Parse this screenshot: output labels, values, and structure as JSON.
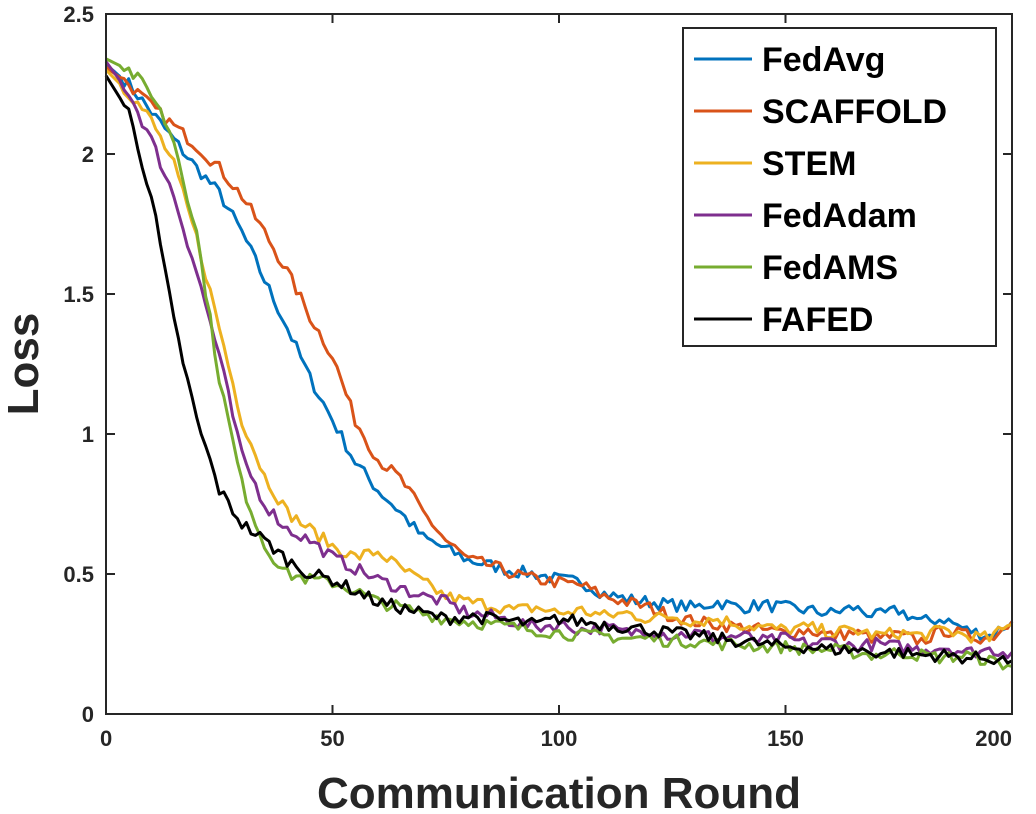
{
  "chart_data": {
    "type": "line",
    "title": "",
    "xlabel": "Communication Round",
    "ylabel": "Loss",
    "xlim": [
      0,
      200
    ],
    "ylim": [
      0,
      2.5
    ],
    "xticks": [
      0,
      50,
      100,
      150,
      200
    ],
    "yticks": [
      0,
      0.5,
      1,
      1.5,
      2,
      2.5
    ],
    "xtick_labels": [
      "0",
      "50",
      "100",
      "150",
      "200"
    ],
    "ytick_labels": [
      "0",
      "0.5",
      "1",
      "1.5",
      "2",
      "2.5"
    ],
    "grid": false,
    "legend_position": "top-right",
    "x": [
      0,
      5,
      10,
      15,
      20,
      25,
      30,
      35,
      40,
      45,
      50,
      55,
      60,
      65,
      70,
      75,
      80,
      85,
      90,
      95,
      100,
      105,
      110,
      115,
      120,
      125,
      130,
      135,
      140,
      145,
      150,
      155,
      160,
      165,
      170,
      175,
      180,
      185,
      190,
      195,
      200
    ],
    "series": [
      {
        "name": "FedAvg",
        "color": "#0072BD",
        "values": [
          2.32,
          2.25,
          2.15,
          2.05,
          1.95,
          1.86,
          1.72,
          1.55,
          1.38,
          1.2,
          1.05,
          0.9,
          0.8,
          0.72,
          0.63,
          0.59,
          0.55,
          0.53,
          0.51,
          0.5,
          0.48,
          0.47,
          0.43,
          0.41,
          0.4,
          0.39,
          0.38,
          0.4,
          0.38,
          0.39,
          0.38,
          0.37,
          0.36,
          0.38,
          0.35,
          0.37,
          0.33,
          0.34,
          0.3,
          0.28,
          0.33
        ]
      },
      {
        "name": "SCAFFOLD",
        "color": "#D95319",
        "values": [
          2.31,
          2.25,
          2.17,
          2.1,
          2.03,
          1.95,
          1.85,
          1.72,
          1.58,
          1.42,
          1.28,
          1.05,
          0.91,
          0.84,
          0.72,
          0.62,
          0.55,
          0.53,
          0.5,
          0.48,
          0.47,
          0.46,
          0.42,
          0.4,
          0.38,
          0.35,
          0.33,
          0.32,
          0.31,
          0.3,
          0.29,
          0.3,
          0.28,
          0.29,
          0.27,
          0.28,
          0.26,
          0.3,
          0.28,
          0.27,
          0.33
        ]
      },
      {
        "name": "STEM",
        "color": "#EDB120",
        "values": [
          2.3,
          2.22,
          2.12,
          1.96,
          1.7,
          1.38,
          1.05,
          0.85,
          0.72,
          0.66,
          0.6,
          0.56,
          0.58,
          0.52,
          0.47,
          0.42,
          0.4,
          0.39,
          0.37,
          0.38,
          0.36,
          0.37,
          0.35,
          0.36,
          0.34,
          0.35,
          0.33,
          0.34,
          0.32,
          0.31,
          0.3,
          0.31,
          0.29,
          0.3,
          0.28,
          0.29,
          0.28,
          0.3,
          0.28,
          0.27,
          0.32
        ]
      },
      {
        "name": "FedAdam",
        "color": "#7E2F8E",
        "values": [
          2.33,
          2.22,
          2.05,
          1.85,
          1.58,
          1.28,
          0.92,
          0.75,
          0.66,
          0.62,
          0.56,
          0.52,
          0.48,
          0.45,
          0.42,
          0.4,
          0.36,
          0.35,
          0.33,
          0.31,
          0.32,
          0.3,
          0.31,
          0.29,
          0.3,
          0.28,
          0.29,
          0.27,
          0.28,
          0.26,
          0.27,
          0.25,
          0.26,
          0.24,
          0.25,
          0.24,
          0.23,
          0.24,
          0.22,
          0.23,
          0.22
        ]
      },
      {
        "name": "FedAMS",
        "color": "#77AC30",
        "values": [
          2.34,
          2.3,
          2.22,
          2.05,
          1.72,
          1.2,
          0.82,
          0.6,
          0.5,
          0.48,
          0.47,
          0.44,
          0.4,
          0.38,
          0.36,
          0.34,
          0.33,
          0.32,
          0.31,
          0.3,
          0.29,
          0.28,
          0.28,
          0.27,
          0.27,
          0.26,
          0.26,
          0.25,
          0.25,
          0.24,
          0.24,
          0.23,
          0.23,
          0.22,
          0.21,
          0.22,
          0.21,
          0.2,
          0.21,
          0.19,
          0.17
        ]
      },
      {
        "name": "FAFED",
        "color": "#000000",
        "values": [
          2.28,
          2.15,
          1.85,
          1.4,
          1.05,
          0.8,
          0.68,
          0.62,
          0.55,
          0.5,
          0.48,
          0.44,
          0.4,
          0.38,
          0.36,
          0.34,
          0.35,
          0.34,
          0.33,
          0.32,
          0.34,
          0.33,
          0.32,
          0.31,
          0.3,
          0.29,
          0.28,
          0.27,
          0.26,
          0.25,
          0.24,
          0.24,
          0.23,
          0.23,
          0.22,
          0.22,
          0.21,
          0.21,
          0.2,
          0.2,
          0.19
        ]
      }
    ]
  }
}
